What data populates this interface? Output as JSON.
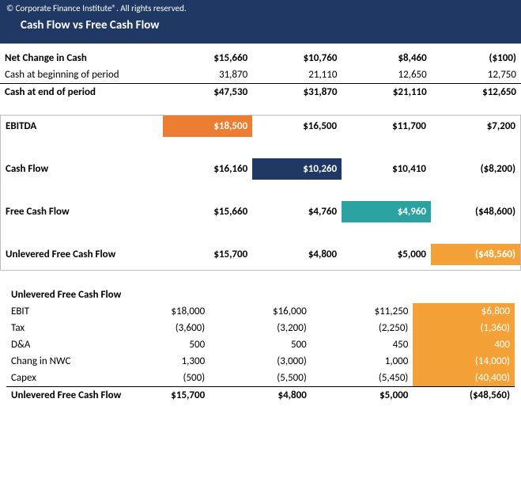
{
  "header": {
    "copyright": "© Corporate Finance Institute®. All rights reserved.",
    "title": "Cash Flow vs Free Cash Flow"
  },
  "sec1": {
    "rows": [
      {
        "label": "Net Change in Cash",
        "v": [
          "$15,660",
          "$10,760",
          "$8,460",
          "($100)"
        ],
        "bold": true
      },
      {
        "label": "Cash at beginning of period",
        "v": [
          "31,870",
          "21,110",
          "12,650",
          "12,750"
        ],
        "bold": false,
        "botline": true
      },
      {
        "label": "Cash at end of period",
        "v": [
          "$47,530",
          "$31,870",
          "$21,110",
          "$12,650"
        ],
        "bold": true
      }
    ]
  },
  "sec2": {
    "rows": [
      {
        "label": "EBITDA",
        "v": [
          "$18,500",
          "$16,500",
          "$11,700",
          "$7,200"
        ],
        "hl": [
          0
        ],
        "hlClass": "hl-orange"
      },
      {
        "label": "Cash Flow",
        "v": [
          "$16,160",
          "$10,260",
          "$10,410",
          "($8,200)"
        ],
        "hl": [
          1
        ],
        "hlClass": "hl-navy"
      },
      {
        "label": "Free Cash Flow",
        "v": [
          "$15,660",
          "$4,760",
          "$4,960",
          "($48,600)"
        ],
        "hl": [
          2
        ],
        "hlClass": "hl-teal"
      },
      {
        "label": "Unlevered Free Cash Flow",
        "v": [
          "$15,700",
          "$4,800",
          "$5,000",
          "($48,560)"
        ],
        "hl": [
          3
        ],
        "hlClass": "hl-orange2"
      }
    ]
  },
  "sec3": {
    "heading": "Unlevered Free Cash Flow",
    "rows": [
      {
        "label": "EBIT",
        "v": [
          "$18,000",
          "$16,000",
          "$11,250",
          "$6,800"
        ]
      },
      {
        "label": "Tax",
        "v": [
          "(3,600)",
          "(3,200)",
          "(2,250)",
          "(1,360)"
        ]
      },
      {
        "label": "D&A",
        "v": [
          "500",
          "500",
          "450",
          "400"
        ]
      },
      {
        "label": "Chang in NWC",
        "v": [
          "1,300",
          "(3,000)",
          "1,000",
          "(14,000)"
        ]
      },
      {
        "label": "Capex",
        "v": [
          "(500)",
          "(5,500)",
          "(5,450)",
          "(40,400)"
        ]
      }
    ],
    "total": {
      "label": "Unlevered Free Cash Flow",
      "v": [
        "$15,700",
        "$4,800",
        "$5,000",
        "($48,560)"
      ]
    },
    "fillCol": 3
  }
}
